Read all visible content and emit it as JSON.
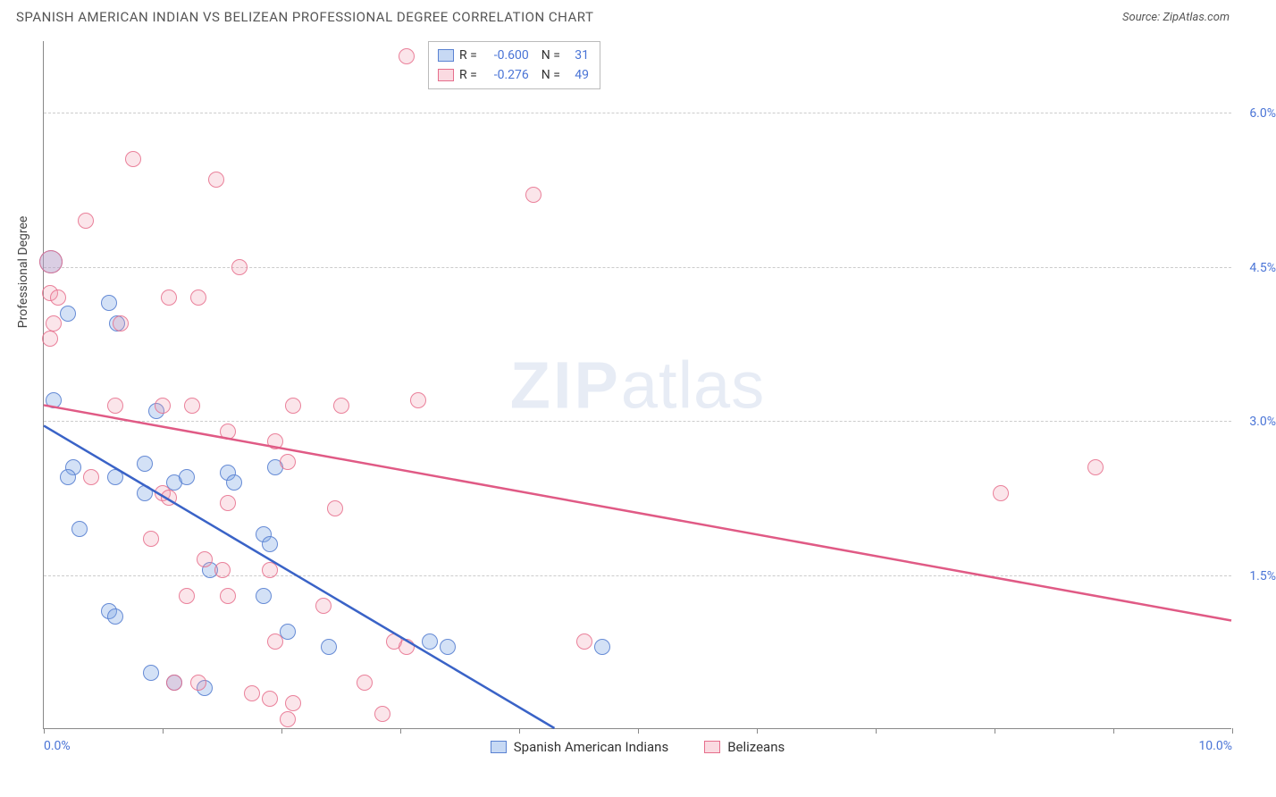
{
  "header": {
    "title": "SPANISH AMERICAN INDIAN VS BELIZEAN PROFESSIONAL DEGREE CORRELATION CHART",
    "source_prefix": "Source: ",
    "source_name": "ZipAtlas.com"
  },
  "watermark": {
    "zip": "ZIP",
    "atlas": "atlas"
  },
  "chart": {
    "type": "scatter",
    "y_axis_label": "Professional Degree",
    "xlim": [
      0,
      10
    ],
    "ylim": [
      0,
      6.7
    ],
    "x_ticks": [
      0,
      1,
      2,
      3,
      4,
      5,
      6,
      7,
      8,
      9,
      10
    ],
    "x_tick_labels": {
      "0": "0.0%",
      "10": "10.0%"
    },
    "y_gridlines": [
      1.5,
      3.0,
      4.5,
      6.0
    ],
    "y_tick_labels": {
      "1.5": "1.5%",
      "3.0": "3.0%",
      "4.5": "4.5%",
      "6.0": "6.0%"
    },
    "background_color": "#ffffff",
    "grid_color": "#cccccc",
    "axis_color": "#888888",
    "tick_label_color": "#4a74d6",
    "marker_radius": 9,
    "series": [
      {
        "name": "Spanish American Indians",
        "color_fill": "rgba(130,170,230,0.35)",
        "color_stroke": "#5a82d2",
        "R": "-0.600",
        "N": "31",
        "trend": {
          "x1": 0.0,
          "y1": 2.95,
          "x2": 4.3,
          "y2": 0.0,
          "stroke": "#3a63c7",
          "width": 2.5
        },
        "points": [
          {
            "x": 0.06,
            "y": 4.55,
            "r": 13
          },
          {
            "x": 0.2,
            "y": 4.05
          },
          {
            "x": 0.55,
            "y": 4.15
          },
          {
            "x": 0.62,
            "y": 3.95
          },
          {
            "x": 0.08,
            "y": 3.2
          },
          {
            "x": 0.95,
            "y": 3.1
          },
          {
            "x": 0.25,
            "y": 2.55
          },
          {
            "x": 0.85,
            "y": 2.58
          },
          {
            "x": 0.2,
            "y": 2.45
          },
          {
            "x": 0.6,
            "y": 2.45
          },
          {
            "x": 0.85,
            "y": 2.3
          },
          {
            "x": 1.1,
            "y": 2.4
          },
          {
            "x": 1.2,
            "y": 2.45
          },
          {
            "x": 1.55,
            "y": 2.5
          },
          {
            "x": 1.6,
            "y": 2.4
          },
          {
            "x": 1.95,
            "y": 2.55
          },
          {
            "x": 0.3,
            "y": 1.95
          },
          {
            "x": 1.85,
            "y": 1.9
          },
          {
            "x": 1.9,
            "y": 1.8
          },
          {
            "x": 1.4,
            "y": 1.55
          },
          {
            "x": 1.85,
            "y": 1.3
          },
          {
            "x": 0.55,
            "y": 1.15
          },
          {
            "x": 0.6,
            "y": 1.1
          },
          {
            "x": 2.05,
            "y": 0.95
          },
          {
            "x": 2.4,
            "y": 0.8
          },
          {
            "x": 3.25,
            "y": 0.85
          },
          {
            "x": 3.4,
            "y": 0.8
          },
          {
            "x": 4.7,
            "y": 0.8
          },
          {
            "x": 0.9,
            "y": 0.55
          },
          {
            "x": 1.1,
            "y": 0.45
          },
          {
            "x": 1.35,
            "y": 0.4
          }
        ]
      },
      {
        "name": "Belizeans",
        "color_fill": "rgba(240,150,170,0.25)",
        "color_stroke": "#e66e8c",
        "R": "-0.276",
        "N": "49",
        "trend": {
          "x1": 0.0,
          "y1": 3.15,
          "x2": 10.0,
          "y2": 1.05,
          "stroke": "#e05a85",
          "width": 2.5
        },
        "points": [
          {
            "x": 3.05,
            "y": 6.55
          },
          {
            "x": 0.75,
            "y": 5.55
          },
          {
            "x": 1.45,
            "y": 5.35
          },
          {
            "x": 4.12,
            "y": 5.2
          },
          {
            "x": 0.35,
            "y": 4.95
          },
          {
            "x": 1.65,
            "y": 4.5
          },
          {
            "x": 0.06,
            "y": 4.55,
            "r": 13
          },
          {
            "x": 0.05,
            "y": 4.25
          },
          {
            "x": 0.12,
            "y": 4.2
          },
          {
            "x": 0.65,
            "y": 3.95
          },
          {
            "x": 1.05,
            "y": 4.2
          },
          {
            "x": 1.3,
            "y": 4.2
          },
          {
            "x": 0.08,
            "y": 3.95
          },
          {
            "x": 0.05,
            "y": 3.8
          },
          {
            "x": 0.6,
            "y": 3.15
          },
          {
            "x": 1.0,
            "y": 3.15
          },
          {
            "x": 1.25,
            "y": 3.15
          },
          {
            "x": 2.1,
            "y": 3.15
          },
          {
            "x": 2.5,
            "y": 3.15
          },
          {
            "x": 3.15,
            "y": 3.2
          },
          {
            "x": 1.55,
            "y": 2.9
          },
          {
            "x": 1.95,
            "y": 2.8
          },
          {
            "x": 2.05,
            "y": 2.6
          },
          {
            "x": 0.4,
            "y": 2.45
          },
          {
            "x": 1.0,
            "y": 2.3
          },
          {
            "x": 1.05,
            "y": 2.25
          },
          {
            "x": 1.55,
            "y": 2.2
          },
          {
            "x": 2.45,
            "y": 2.15
          },
          {
            "x": 8.05,
            "y": 2.3
          },
          {
            "x": 8.85,
            "y": 2.55
          },
          {
            "x": 0.9,
            "y": 1.85
          },
          {
            "x": 1.35,
            "y": 1.65
          },
          {
            "x": 1.5,
            "y": 1.55
          },
          {
            "x": 1.9,
            "y": 1.55
          },
          {
            "x": 1.2,
            "y": 1.3
          },
          {
            "x": 1.55,
            "y": 1.3
          },
          {
            "x": 2.35,
            "y": 1.2
          },
          {
            "x": 1.95,
            "y": 0.85
          },
          {
            "x": 2.95,
            "y": 0.85
          },
          {
            "x": 3.05,
            "y": 0.8
          },
          {
            "x": 4.55,
            "y": 0.85
          },
          {
            "x": 1.1,
            "y": 0.45
          },
          {
            "x": 1.3,
            "y": 0.45
          },
          {
            "x": 1.75,
            "y": 0.35
          },
          {
            "x": 1.9,
            "y": 0.3
          },
          {
            "x": 2.1,
            "y": 0.25
          },
          {
            "x": 2.7,
            "y": 0.45
          },
          {
            "x": 2.85,
            "y": 0.15
          },
          {
            "x": 2.05,
            "y": 0.1
          }
        ]
      }
    ]
  },
  "stats_box": {
    "rows": [
      {
        "swatch": "blue",
        "R_label": "R =",
        "R": "-0.600",
        "N_label": "N =",
        "N": "31"
      },
      {
        "swatch": "pink",
        "R_label": "R =",
        "R": "-0.276",
        "N_label": "N =",
        "N": "49"
      }
    ]
  },
  "legend": {
    "items": [
      {
        "swatch": "blue",
        "label": "Spanish American Indians"
      },
      {
        "swatch": "pink",
        "label": "Belizeans"
      }
    ]
  }
}
